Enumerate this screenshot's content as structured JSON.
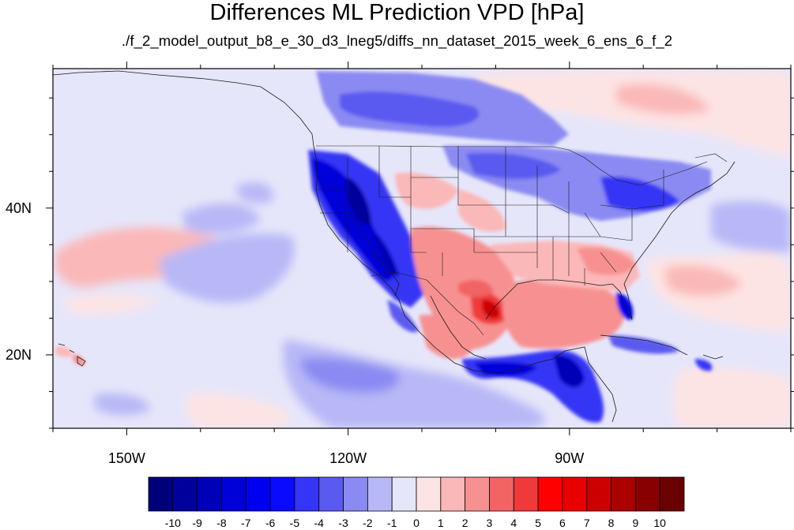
{
  "title": "Differences ML Prediction VPD [hPa]",
  "subtitle": "./f_2_model_output_b8_e_30_d3_lneg5/diffs_nn_dataset_2015_week_6_ens_6_f_2",
  "map": {
    "projection": "cylindrical-equidistant",
    "lon_range": [
      -160,
      -60
    ],
    "lat_range": [
      10,
      59
    ],
    "lon_ticks": [
      {
        "value": -150,
        "label": "150W"
      },
      {
        "value": -120,
        "label": "120W"
      },
      {
        "value": -90,
        "label": "90W"
      }
    ],
    "lat_ticks": [
      {
        "value": 40,
        "label": "40N"
      },
      {
        "value": 20,
        "label": "20N"
      }
    ],
    "field": "VPD difference",
    "units": "hPa"
  },
  "colorbar": {
    "labels": [
      "-10",
      "-9",
      "-8",
      "-7",
      "-6",
      "-5",
      "-4",
      "-3",
      "-2",
      "-1",
      "0",
      "1",
      "2",
      "3",
      "4",
      "5",
      "6",
      "7",
      "8",
      "9",
      "10"
    ],
    "colors": [
      "#00007a",
      "#00009a",
      "#0000b8",
      "#0000d8",
      "#0000f0",
      "#0a0aff",
      "#3535f5",
      "#5a5af0",
      "#8a8af2",
      "#b8b8f7",
      "#e6e6fa",
      "#fde4e4",
      "#fbb8b8",
      "#f79191",
      "#f26464",
      "#f03a3a",
      "#ff0000",
      "#e80000",
      "#cc0000",
      "#aa0000",
      "#880000",
      "#6a0000"
    ]
  }
}
